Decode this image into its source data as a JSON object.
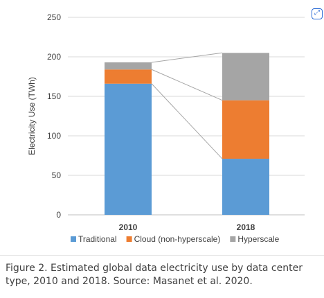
{
  "chart_data": {
    "type": "bar",
    "stacked": true,
    "categories": [
      "2010",
      "2018"
    ],
    "series": [
      {
        "name": "Traditional",
        "color": "#5b9bd5",
        "values": [
          166,
          71
        ]
      },
      {
        "name": "Cloud (non-hyperscale)",
        "color": "#ed7d31",
        "values": [
          18,
          74
        ]
      },
      {
        "name": "Hyperscale",
        "color": "#a5a5a5",
        "values": [
          9,
          60
        ]
      }
    ],
    "ylabel": "Electricity Use (TWh)",
    "xlabel": "",
    "ylim": [
      0,
      250
    ],
    "yticks": [
      0,
      50,
      100,
      150,
      200,
      250
    ],
    "grid": true,
    "legend": "bottom",
    "connector_lines": true
  },
  "caption": "Figure 2. Estimated global data electricity use by data center type, 2010 and 2018. Source: Masanet et al. 2020.",
  "icons": {
    "corner": "expand-icon"
  }
}
